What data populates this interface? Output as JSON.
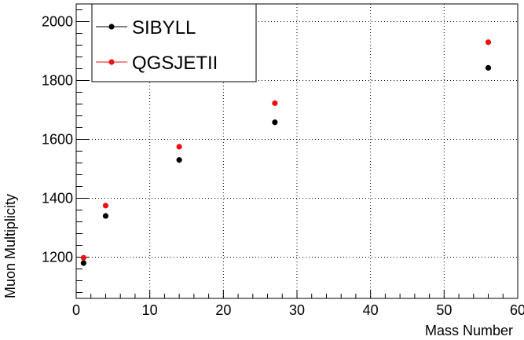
{
  "chart_data": {
    "type": "scatter",
    "xlabel": "Mass Number",
    "ylabel": "Muon Multiplicity",
    "xlim": [
      0,
      60
    ],
    "ylim": [
      1060,
      2060
    ],
    "x_ticks": [
      0,
      10,
      20,
      30,
      40,
      50,
      60
    ],
    "y_ticks": [
      1200,
      1400,
      1600,
      1800,
      2000
    ],
    "grid": true,
    "legend_position": "top-left",
    "series": [
      {
        "name": "SIBYLL",
        "color": "#000000",
        "points": [
          {
            "x": 1,
            "y": 1180
          },
          {
            "x": 4,
            "y": 1340
          },
          {
            "x": 14,
            "y": 1530
          },
          {
            "x": 27,
            "y": 1658
          },
          {
            "x": 56,
            "y": 1843
          }
        ]
      },
      {
        "name": "QGSJETII",
        "color": "#ee1111",
        "points": [
          {
            "x": 1,
            "y": 1198
          },
          {
            "x": 4,
            "y": 1375
          },
          {
            "x": 14,
            "y": 1575
          },
          {
            "x": 27,
            "y": 1723
          },
          {
            "x": 56,
            "y": 1930
          }
        ]
      }
    ]
  }
}
